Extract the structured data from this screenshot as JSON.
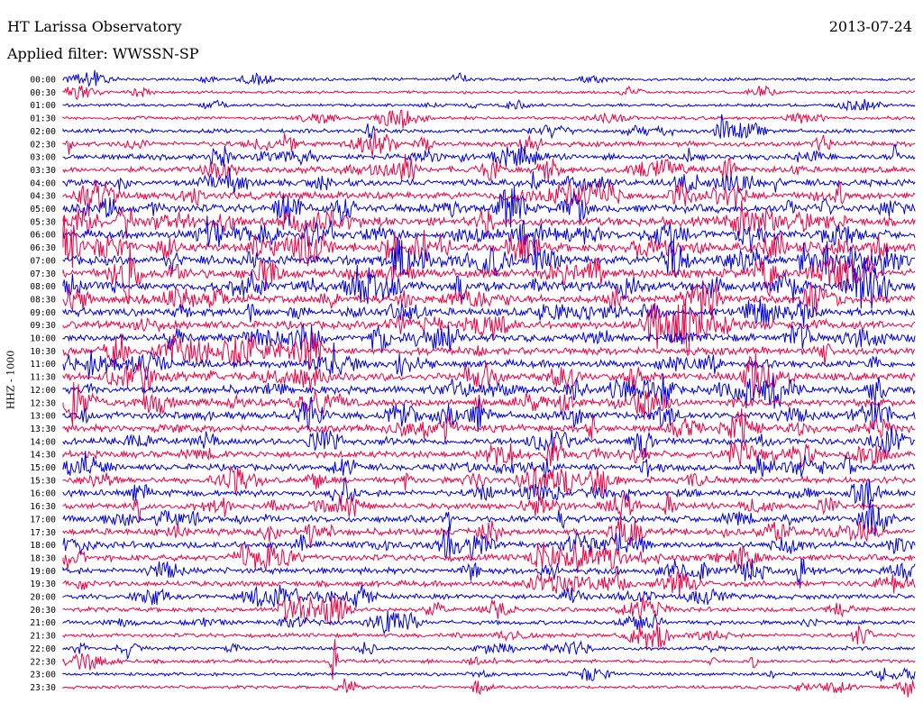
{
  "header": {
    "title": "HT Larissa Observatory",
    "filter": "Applied filter: WWSSN-SP",
    "date": "2013-07-24"
  },
  "chart_data": {
    "type": "line",
    "title": "HT Larissa Observatory",
    "subtitle": "Applied filter: WWSSN-SP",
    "date": "2013-07-24",
    "ylabel": "HHZ - 1000",
    "xlabel": "",
    "colors": [
      "#0000dd",
      "#ee0044"
    ],
    "rows": [
      {
        "label": "00:00",
        "level": 0.15
      },
      {
        "label": "00:30",
        "level": 0.15
      },
      {
        "label": "01:00",
        "level": 0.15
      },
      {
        "label": "01:30",
        "level": 0.2
      },
      {
        "label": "02:00",
        "level": 0.3
      },
      {
        "label": "02:30",
        "level": 0.45
      },
      {
        "label": "03:00",
        "level": 0.55
      },
      {
        "label": "03:30",
        "level": 0.6
      },
      {
        "label": "04:00",
        "level": 0.7
      },
      {
        "label": "04:30",
        "level": 0.75
      },
      {
        "label": "05:00",
        "level": 0.9
      },
      {
        "label": "05:30",
        "level": 0.95
      },
      {
        "label": "06:00",
        "level": 0.95
      },
      {
        "label": "06:30",
        "level": 1.0
      },
      {
        "label": "07:00",
        "level": 1.0
      },
      {
        "label": "07:30",
        "level": 1.0
      },
      {
        "label": "08:00",
        "level": 1.0
      },
      {
        "label": "08:30",
        "level": 0.9
      },
      {
        "label": "09:00",
        "level": 0.85
      },
      {
        "label": "09:30",
        "level": 0.85
      },
      {
        "label": "10:00",
        "level": 0.85
      },
      {
        "label": "10:30",
        "level": 0.8
      },
      {
        "label": "11:00",
        "level": 0.8
      },
      {
        "label": "11:30",
        "level": 0.85
      },
      {
        "label": "12:00",
        "level": 0.9
      },
      {
        "label": "12:30",
        "level": 0.8
      },
      {
        "label": "13:00",
        "level": 0.8
      },
      {
        "label": "13:30",
        "level": 0.75
      },
      {
        "label": "14:00",
        "level": 0.7
      },
      {
        "label": "14:30",
        "level": 0.7
      },
      {
        "label": "15:00",
        "level": 0.65
      },
      {
        "label": "15:30",
        "level": 0.65
      },
      {
        "label": "16:00",
        "level": 0.65
      },
      {
        "label": "16:30",
        "level": 0.6
      },
      {
        "label": "17:00",
        "level": 0.65
      },
      {
        "label": "17:30",
        "level": 0.7
      },
      {
        "label": "18:00",
        "level": 0.7
      },
      {
        "label": "18:30",
        "level": 0.65
      },
      {
        "label": "19:00",
        "level": 0.6
      },
      {
        "label": "19:30",
        "level": 0.55
      },
      {
        "label": "20:00",
        "level": 0.45
      },
      {
        "label": "20:30",
        "level": 0.4
      },
      {
        "label": "21:00",
        "level": 0.35
      },
      {
        "label": "21:30",
        "level": 0.3
      },
      {
        "label": "22:00",
        "level": 0.3
      },
      {
        "label": "22:30",
        "level": 0.25
      },
      {
        "label": "23:00",
        "level": 0.2
      },
      {
        "label": "23:30",
        "level": 0.2
      }
    ]
  }
}
